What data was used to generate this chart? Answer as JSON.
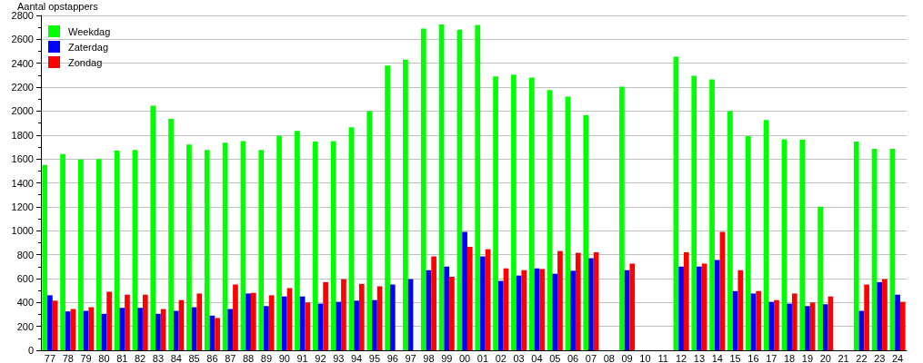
{
  "chart_data": {
    "type": "bar",
    "ylabel": "Aantal opstappers",
    "categories": [
      "77",
      "78",
      "79",
      "80",
      "81",
      "82",
      "83",
      "84",
      "85",
      "86",
      "87",
      "88",
      "89",
      "90",
      "91",
      "92",
      "93",
      "94",
      "95",
      "96",
      "97",
      "98",
      "99",
      "00",
      "01",
      "02",
      "03",
      "04",
      "05",
      "06",
      "07",
      "08",
      "09",
      "10",
      "11",
      "12",
      "13",
      "14",
      "15",
      "16",
      "17",
      "18",
      "19",
      "20",
      "21",
      "22",
      "23",
      "24"
    ],
    "series": [
      {
        "name": "Weekdag",
        "color": "#00ff00",
        "values": [
          1550,
          1640,
          1595,
          1600,
          1670,
          1675,
          2045,
          1935,
          1720,
          1675,
          1735,
          1750,
          1675,
          1795,
          1835,
          1745,
          1750,
          1865,
          2000,
          2380,
          2430,
          2690,
          2725,
          2680,
          2720,
          2290,
          2305,
          2280,
          2175,
          2120,
          1965,
          null,
          2205,
          null,
          null,
          2455,
          2295,
          2265,
          2000,
          1790,
          1925,
          1765,
          1760,
          1200,
          null,
          1745,
          1685,
          1685
        ]
      },
      {
        "name": "Zaterdag",
        "color": "#0000ff",
        "values": [
          460,
          325,
          330,
          305,
          355,
          355,
          305,
          330,
          360,
          290,
          345,
          475,
          370,
          450,
          450,
          390,
          405,
          415,
          420,
          550,
          595,
          670,
          700,
          990,
          785,
          580,
          625,
          685,
          640,
          665,
          770,
          null,
          670,
          null,
          null,
          700,
          700,
          755,
          495,
          475,
          405,
          390,
          370,
          385,
          null,
          330,
          570,
          465
        ]
      },
      {
        "name": "Zondag",
        "color": "#ff0000",
        "values": [
          415,
          345,
          360,
          490,
          465,
          465,
          345,
          420,
          475,
          270,
          550,
          480,
          460,
          520,
          400,
          570,
          595,
          555,
          535,
          null,
          null,
          785,
          615,
          865,
          845,
          685,
          670,
          680,
          830,
          815,
          820,
          null,
          725,
          null,
          null,
          820,
          725,
          990,
          670,
          495,
          420,
          475,
          400,
          450,
          null,
          550,
          595,
          405
        ]
      }
    ],
    "ylim": [
      0,
      2800
    ],
    "yticks": [
      0,
      200,
      400,
      600,
      800,
      1000,
      1200,
      1400,
      1600,
      1800,
      2000,
      2200,
      2400,
      2600,
      2800
    ],
    "grid": "y",
    "legend": "top left"
  }
}
